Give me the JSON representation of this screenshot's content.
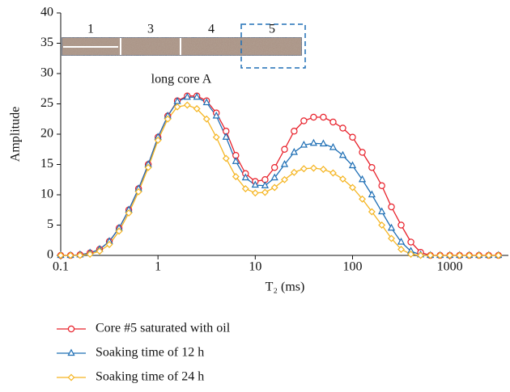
{
  "chart_data": {
    "type": "line",
    "x_label": "T₂ (ms)",
    "y_label": "Amplitude",
    "xscale": "log",
    "grid": false,
    "legend": "bottom",
    "xlim": [
      0.1,
      4000
    ],
    "xticks": [
      0.1,
      1,
      10,
      100,
      1000
    ],
    "ylim": [
      0,
      40
    ],
    "yticks": [
      0,
      5,
      10,
      15,
      20,
      25,
      30,
      35,
      40
    ],
    "inset_labels": [
      "1",
      "3",
      "4",
      "5"
    ],
    "inset_caption": "long core A",
    "x": [
      0.1,
      0.126,
      0.158,
      0.2,
      0.251,
      0.316,
      0.398,
      0.501,
      0.631,
      0.794,
      1,
      1.26,
      1.58,
      2,
      2.51,
      3.16,
      3.98,
      5.01,
      6.31,
      7.94,
      10,
      12.6,
      15.8,
      20,
      25.1,
      31.6,
      39.8,
      50.1,
      63.1,
      79.4,
      100,
      126,
      158,
      200,
      251,
      316,
      398,
      501,
      631,
      794,
      1000,
      1259,
      1585,
      1995,
      2512,
      3162
    ],
    "series": [
      {
        "name": "Core #5 saturated with oil",
        "color": "#e8202a",
        "marker": "circle",
        "values": [
          0,
          0,
          0.1,
          0.4,
          1.0,
          2.3,
          4.5,
          7.5,
          11,
          15,
          19.5,
          23,
          25.5,
          26.3,
          26.3,
          25.5,
          23.5,
          20.5,
          16.5,
          13.5,
          12.2,
          12.5,
          14.5,
          17.5,
          20.5,
          22.2,
          22.8,
          22.8,
          22,
          21,
          19.5,
          17,
          14.5,
          11.5,
          8,
          5,
          2.2,
          0.5,
          0,
          0,
          0,
          0,
          0,
          0,
          0,
          0
        ]
      },
      {
        "name": "Soaking time of 12 h",
        "color": "#1f6fb5",
        "marker": "triangle",
        "values": [
          0,
          0,
          0.1,
          0.4,
          1.0,
          2.3,
          4.5,
          7.5,
          11,
          15,
          19.5,
          23,
          25.4,
          26.1,
          26.1,
          25.2,
          23,
          19.5,
          15.5,
          12.8,
          11.6,
          11.5,
          12.8,
          15,
          17,
          18.2,
          18.5,
          18.4,
          17.8,
          16.5,
          14.8,
          12.5,
          10,
          7.2,
          4.5,
          2.2,
          0.7,
          0.1,
          0,
          0,
          0,
          0,
          0,
          0,
          0,
          0
        ]
      },
      {
        "name": "Soaking time of 24 h",
        "color": "#f5b521",
        "marker": "diamond",
        "values": [
          0,
          0,
          0,
          0.2,
          0.7,
          1.8,
          4,
          7,
          10.5,
          14.5,
          19,
          22.5,
          24.5,
          24.8,
          24.2,
          22.5,
          19.5,
          16,
          13,
          11,
          10.3,
          10.4,
          11.2,
          12.5,
          13.7,
          14.3,
          14.4,
          14.2,
          13.6,
          12.6,
          11.2,
          9.3,
          7.2,
          5,
          2.8,
          1,
          0.2,
          0,
          0,
          0,
          0,
          0,
          0,
          0,
          0,
          0
        ]
      }
    ]
  }
}
